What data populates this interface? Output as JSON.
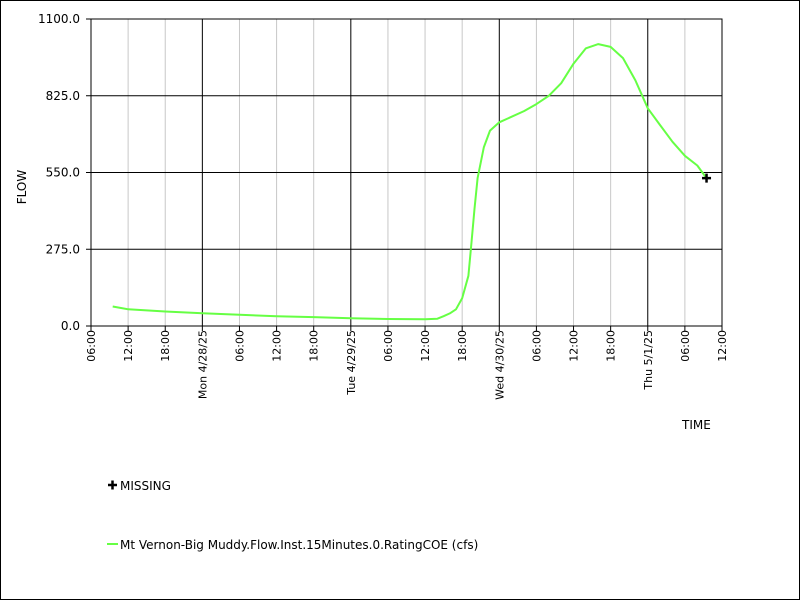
{
  "chart_data": {
    "type": "line",
    "title": "",
    "xlabel": "TIME",
    "ylabel": "FLOW",
    "ylim": [
      0,
      1100
    ],
    "xlim": [
      "2025-04-27T06:00",
      "2025-05-01T12:00"
    ],
    "y_ticks": [
      "0.0",
      "275.0",
      "550.0",
      "825.0",
      "1100.0"
    ],
    "y_tick_values": [
      0,
      275,
      550,
      825,
      1100
    ],
    "x_ticks": [
      {
        "t": "2025-04-27T06:00",
        "label": "06:00",
        "major": false
      },
      {
        "t": "2025-04-27T12:00",
        "label": "12:00",
        "major": false
      },
      {
        "t": "2025-04-27T18:00",
        "label": "18:00",
        "major": false
      },
      {
        "t": "2025-04-28T00:00",
        "label": "Mon 4/28/25",
        "major": true
      },
      {
        "t": "2025-04-28T06:00",
        "label": "06:00",
        "major": false
      },
      {
        "t": "2025-04-28T12:00",
        "label": "12:00",
        "major": false
      },
      {
        "t": "2025-04-28T18:00",
        "label": "18:00",
        "major": false
      },
      {
        "t": "2025-04-29T00:00",
        "label": "Tue 4/29/25",
        "major": true
      },
      {
        "t": "2025-04-29T06:00",
        "label": "06:00",
        "major": false
      },
      {
        "t": "2025-04-29T12:00",
        "label": "12:00",
        "major": false
      },
      {
        "t": "2025-04-29T18:00",
        "label": "18:00",
        "major": false
      },
      {
        "t": "2025-04-30T00:00",
        "label": "Wed 4/30/25",
        "major": true
      },
      {
        "t": "2025-04-30T06:00",
        "label": "06:00",
        "major": false
      },
      {
        "t": "2025-04-30T12:00",
        "label": "12:00",
        "major": false
      },
      {
        "t": "2025-04-30T18:00",
        "label": "18:00",
        "major": false
      },
      {
        "t": "2025-05-01T00:00",
        "label": "Thu 5/1/25",
        "major": true
      },
      {
        "t": "2025-05-01T06:00",
        "label": "06:00",
        "major": false
      },
      {
        "t": "2025-05-01T12:00",
        "label": "12:00",
        "major": false
      }
    ],
    "grid": true,
    "legend_position": "bottom-left",
    "series": [
      {
        "name": "Mt Vernon-Big Muddy.Flow.Inst.15Minutes.0.RatingCOE (cfs)",
        "color": "#66ff44",
        "points": [
          [
            "2025-04-27T09:30",
            70
          ],
          [
            "2025-04-27T12:00",
            60
          ],
          [
            "2025-04-27T18:00",
            52
          ],
          [
            "2025-04-28T00:00",
            46
          ],
          [
            "2025-04-28T06:00",
            40
          ],
          [
            "2025-04-28T12:00",
            35
          ],
          [
            "2025-04-28T18:00",
            32
          ],
          [
            "2025-04-29T00:00",
            28
          ],
          [
            "2025-04-29T06:00",
            25
          ],
          [
            "2025-04-29T12:00",
            24
          ],
          [
            "2025-04-29T14:00",
            26
          ],
          [
            "2025-04-29T15:00",
            35
          ],
          [
            "2025-04-29T16:00",
            45
          ],
          [
            "2025-04-29T17:00",
            60
          ],
          [
            "2025-04-29T18:00",
            100
          ],
          [
            "2025-04-29T19:00",
            180
          ],
          [
            "2025-04-29T19:30",
            300
          ],
          [
            "2025-04-29T20:00",
            420
          ],
          [
            "2025-04-29T20:30",
            530
          ],
          [
            "2025-04-29T21:30",
            640
          ],
          [
            "2025-04-29T22:30",
            700
          ],
          [
            "2025-04-30T00:00",
            730
          ],
          [
            "2025-04-30T02:00",
            750
          ],
          [
            "2025-04-30T04:00",
            770
          ],
          [
            "2025-04-30T06:00",
            795
          ],
          [
            "2025-04-30T08:00",
            825
          ],
          [
            "2025-04-30T10:00",
            870
          ],
          [
            "2025-04-30T12:00",
            940
          ],
          [
            "2025-04-30T14:00",
            995
          ],
          [
            "2025-04-30T16:00",
            1010
          ],
          [
            "2025-04-30T18:00",
            1000
          ],
          [
            "2025-04-30T20:00",
            960
          ],
          [
            "2025-04-30T22:00",
            880
          ],
          [
            "2025-05-01T00:00",
            780
          ],
          [
            "2025-05-01T02:00",
            720
          ],
          [
            "2025-05-01T04:00",
            660
          ],
          [
            "2025-05-01T06:00",
            610
          ],
          [
            "2025-05-01T08:00",
            575
          ],
          [
            "2025-05-01T09:00",
            545
          ],
          [
            "2025-05-01T09:30",
            530
          ]
        ]
      }
    ],
    "missing_markers": [
      {
        "t": "2025-05-01T09:30",
        "y": 530
      }
    ],
    "legend": {
      "missing_label": "MISSING",
      "series_label": "Mt Vernon-Big Muddy.Flow.Inst.15Minutes.0.RatingCOE (cfs)"
    }
  }
}
